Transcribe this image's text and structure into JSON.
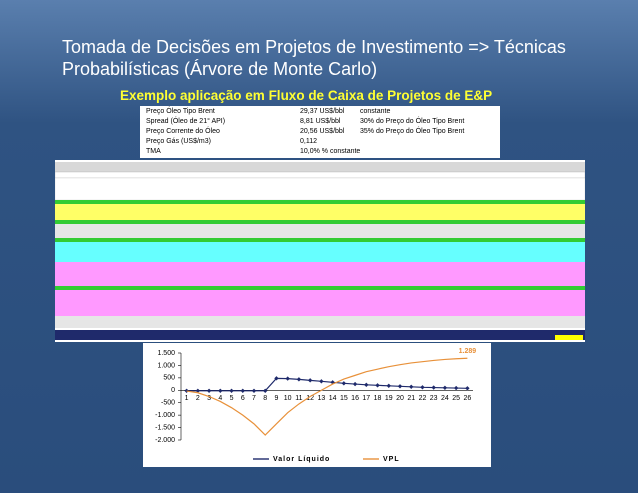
{
  "title": "Tomada de Decisões em Projetos de Investimento => Técnicas Probabilísticas (Árvore de Monte Carlo)",
  "subtitle": "Exemplo aplicação em Fluxo de Caixa de Projetos de E&P",
  "parameters": [
    [
      "Preço Óleo Tipo Brent",
      "29,37 US$/bbl",
      "constante"
    ],
    [
      "Spread (Óleo de 21° API)",
      "8,81 US$/bbl",
      "30% do Preço do Óleo Tipo Brent"
    ],
    [
      "Preço Corrente do Óleo",
      "20,56 US$/bbl",
      "35% do Preço do Óleo Tipo Brent"
    ],
    [
      "Preço Gás (US$/m3)",
      "0,112"
    ],
    [
      "TMA",
      "10,0% % constante"
    ]
  ],
  "chart_data": {
    "type": "line",
    "categories": [
      1,
      2,
      3,
      4,
      5,
      6,
      7,
      8,
      9,
      10,
      11,
      12,
      13,
      14,
      15,
      16,
      17,
      18,
      19,
      20,
      21,
      22,
      23,
      24,
      25,
      26
    ],
    "series": [
      {
        "name": "Valor Líquido",
        "color": "#1f2a6b",
        "marker": true,
        "values": [
          -20,
          -20,
          -20,
          -20,
          -20,
          -20,
          -20,
          -20,
          480,
          470,
          440,
          400,
          360,
          320,
          280,
          250,
          220,
          200,
          180,
          160,
          140,
          120,
          110,
          100,
          90,
          80
        ]
      },
      {
        "name": "VPL",
        "color": "#e8913a",
        "marker": false,
        "values": [
          -30,
          -100,
          -250,
          -450,
          -700,
          -1000,
          -1350,
          -1800,
          -1350,
          -900,
          -550,
          -250,
          0,
          250,
          450,
          600,
          750,
          850,
          950,
          1030,
          1100,
          1150,
          1200,
          1240,
          1270,
          1289
        ],
        "value_labels": [
          null,
          null,
          null,
          null,
          null,
          null,
          null,
          null,
          null,
          null,
          null,
          null,
          null,
          null,
          null,
          null,
          null,
          null,
          null,
          null,
          null,
          null,
          null,
          null,
          null,
          "1.289"
        ]
      }
    ],
    "ylim": [
      -2000,
      1500
    ],
    "yticks": [
      {
        "value": 1500,
        "label": "1.500"
      },
      {
        "value": 1000,
        "label": "1.000"
      },
      500,
      0,
      -500,
      {
        "value": -1000,
        "label": "-1.000"
      },
      {
        "value": -1500,
        "label": "-1.500"
      },
      {
        "value": -2000,
        "label": "-2.000"
      }
    ],
    "legend": "bottom"
  }
}
